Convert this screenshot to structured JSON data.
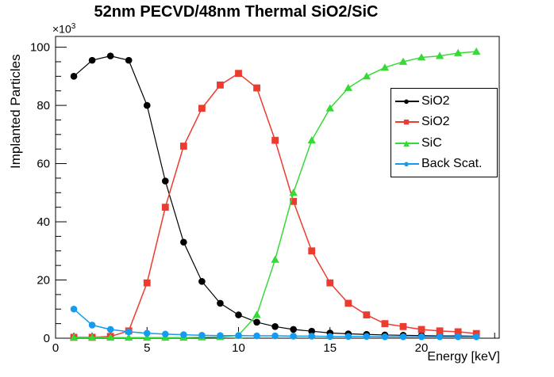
{
  "title": "52nm PECVD/48nm Thermal SiO2/SiC",
  "axes": {
    "x_label": "Energy [keV]",
    "y_label": "Implanted Particles",
    "scale_base": "×10",
    "scale_exponent": "3",
    "x_ticks": [
      0,
      5,
      10,
      15,
      20
    ],
    "y_ticks": [
      0,
      20,
      40,
      60,
      80,
      100
    ]
  },
  "legend": {
    "entries": [
      {
        "label": "SiO2",
        "marker": "circle",
        "color": "#000000"
      },
      {
        "label": "SiO2",
        "marker": "square",
        "color": "#ec3b2f"
      },
      {
        "label": "SiC",
        "marker": "triangle",
        "color": "#36da36"
      },
      {
        "label": "Back Scat.",
        "marker": "circle",
        "color": "#159bf0"
      }
    ]
  },
  "chart_data": {
    "type": "line",
    "title": "52nm PECVD/48nm Thermal SiO2/SiC",
    "xlabel": "Energy [keV]",
    "ylabel": "Implanted Particles",
    "y_unit_scale": "×10^3",
    "xlim": [
      0,
      24.25
    ],
    "ylim": [
      0,
      103.7
    ],
    "grid": false,
    "legend_position": "right-middle",
    "x": [
      1,
      2,
      3,
      4,
      5,
      6,
      7,
      8,
      9,
      10,
      11,
      12,
      13,
      14,
      15,
      16,
      17,
      18,
      19,
      20,
      21,
      22,
      23
    ],
    "series": [
      {
        "name": "SiO2",
        "marker": "circle",
        "color": "#000000",
        "line_width": 1.2,
        "values": [
          90,
          95.5,
          97,
          95.5,
          80,
          54,
          33,
          19.5,
          12,
          8,
          5.5,
          4,
          3,
          2.4,
          1.8,
          1.5,
          1.3,
          1.1,
          1.0,
          0.9,
          0.8,
          0.8,
          0.7
        ]
      },
      {
        "name": "SiO2",
        "marker": "square",
        "color": "#ec3b2f",
        "line_width": 1.5,
        "values": [
          0.3,
          0.3,
          0.6,
          2.5,
          19,
          45,
          66,
          79,
          87,
          91,
          86,
          68,
          47,
          30,
          19,
          12,
          8,
          5,
          4,
          3,
          2.5,
          2.2,
          1.6
        ]
      },
      {
        "name": "SiC",
        "marker": "triangle",
        "color": "#36da36",
        "line_width": 1.5,
        "values": [
          0.2,
          0.2,
          0.2,
          0.2,
          0.2,
          0.2,
          0.2,
          0.3,
          0.4,
          1,
          8,
          27,
          50,
          68,
          79,
          86,
          90,
          93,
          95,
          96.5,
          97,
          98,
          98.5
        ]
      },
      {
        "name": "Back Scat.",
        "marker": "circle",
        "color": "#159bf0",
        "line_width": 1.5,
        "values": [
          10,
          4.5,
          3,
          2.2,
          1.7,
          1.4,
          1.2,
          1.0,
          0.9,
          0.9,
          0.8,
          0.8,
          0.7,
          0.7,
          0.6,
          0.6,
          0.6,
          0.5,
          0.5,
          0.5,
          0.5,
          0.5,
          0.5
        ]
      }
    ]
  }
}
